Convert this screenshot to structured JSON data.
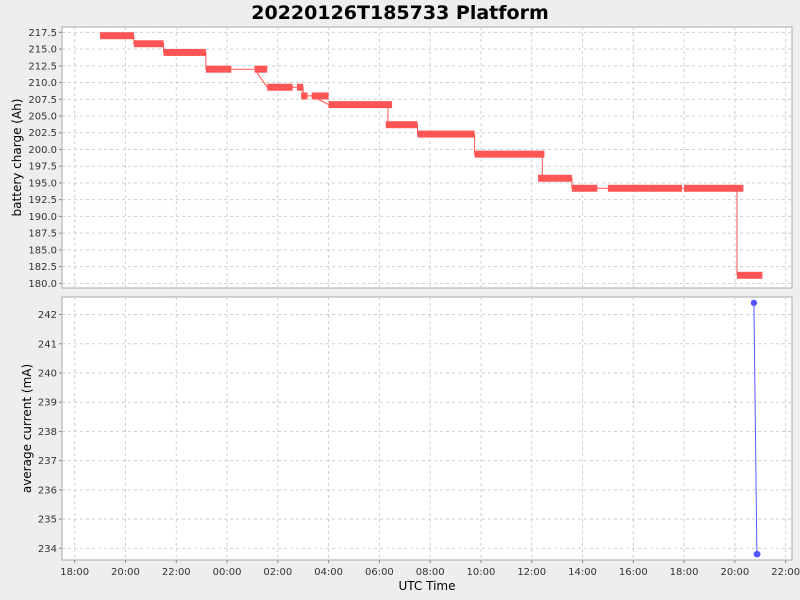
{
  "title": "20220126T185733 Platform",
  "colors": {
    "battery": "#ff5555",
    "current": "#5555ff",
    "plot_bg": "#ffffff",
    "frame": "#aaaaaa"
  },
  "chart_data": [
    {
      "type": "line",
      "title": "20220126T185733 Platform",
      "ylabel": "battery charge (Ah)",
      "xlabel": "UTC Time",
      "ylim": [
        179.3,
        218.3
      ],
      "yticks": [
        "180.0",
        "182.5",
        "185.0",
        "187.5",
        "190.0",
        "192.5",
        "195.0",
        "197.5",
        "200.0",
        "202.5",
        "205.0",
        "207.5",
        "210.0",
        "212.5",
        "215.0",
        "217.5"
      ],
      "grid": true,
      "series": [
        {
          "segments": [
            {
              "x_start": "2022-01-26 19:00",
              "x_end": "2022-01-26 20:20",
              "y": 217.0
            },
            {
              "x_start": "2022-01-26 20:20",
              "x_end": "2022-01-26 21:30",
              "y": 215.8
            },
            {
              "x_start": "2022-01-26 21:30",
              "x_end": "2022-01-26 23:10",
              "y": 214.5
            },
            {
              "x_start": "2022-01-26 23:10",
              "x_end": "2022-01-27 00:10",
              "y": 212.0
            },
            {
              "x_start": "2022-01-27 01:05",
              "x_end": "2022-01-27 01:35",
              "y": 212.0
            },
            {
              "x_start": "2022-01-27 01:35",
              "x_end": "2022-01-27 02:35",
              "y": 209.3
            },
            {
              "x_start": "2022-01-27 02:45",
              "x_end": "2022-01-27 03:00",
              "y": 209.3
            },
            {
              "x_start": "2022-01-27 02:55",
              "x_end": "2022-01-27 03:10",
              "y": 208.0
            },
            {
              "x_start": "2022-01-27 03:20",
              "x_end": "2022-01-27 04:00",
              "y": 208.0
            },
            {
              "x_start": "2022-01-27 04:00",
              "x_end": "2022-01-27 06:30",
              "y": 206.7
            },
            {
              "x_start": "2022-01-27 06:15",
              "x_end": "2022-01-27 07:30",
              "y": 203.7
            },
            {
              "x_start": "2022-01-27 07:30",
              "x_end": "2022-01-27 09:45",
              "y": 202.3
            },
            {
              "x_start": "2022-01-27 09:45",
              "x_end": "2022-01-27 12:30",
              "y": 199.3
            },
            {
              "x_start": "2022-01-27 12:15",
              "x_end": "2022-01-27 13:35",
              "y": 195.7
            },
            {
              "x_start": "2022-01-27 13:35",
              "x_end": "2022-01-27 14:35",
              "y": 194.2
            },
            {
              "x_start": "2022-01-27 15:00",
              "x_end": "2022-01-27 15:25",
              "y": 194.2
            },
            {
              "x_start": "2022-01-27 15:25",
              "x_end": "2022-01-27 16:35",
              "y": 194.2
            },
            {
              "x_start": "2022-01-27 16:35",
              "x_end": "2022-01-27 17:55",
              "y": 194.2
            },
            {
              "x_start": "2022-01-27 18:00",
              "x_end": "2022-01-27 20:20",
              "y": 194.2
            },
            {
              "x_start": "2022-01-27 20:05",
              "x_end": "2022-01-27 21:05",
              "y": 181.2
            }
          ],
          "path": [
            [
              "2022-01-26 20:20",
              217.0
            ],
            [
              "2022-01-26 20:20",
              215.8
            ],
            [
              "2022-01-26 21:30",
              215.8
            ],
            [
              "2022-01-26 21:30",
              214.5
            ],
            [
              "2022-01-26 23:10",
              214.5
            ],
            [
              "2022-01-26 23:10",
              212.0
            ],
            [
              "2022-01-27 01:05",
              212.0
            ],
            [
              "2022-01-27 01:35",
              209.3
            ],
            [
              "2022-01-27 02:35",
              209.3
            ],
            [
              "2022-01-27 02:45",
              209.3
            ],
            [
              "2022-01-27 03:00",
              209.3
            ],
            [
              "2022-01-27 03:00",
              208.0
            ],
            [
              "2022-01-27 03:20",
              208.0
            ],
            [
              "2022-01-27 04:00",
              206.7
            ],
            [
              "2022-01-27 06:20",
              206.7
            ],
            [
              "2022-01-27 06:20",
              203.7
            ],
            [
              "2022-01-27 07:30",
              203.7
            ],
            [
              "2022-01-27 07:30",
              202.3
            ],
            [
              "2022-01-27 09:45",
              202.3
            ],
            [
              "2022-01-27 09:45",
              199.3
            ],
            [
              "2022-01-27 12:25",
              199.3
            ],
            [
              "2022-01-27 12:25",
              195.7
            ],
            [
              "2022-01-27 13:35",
              195.7
            ],
            [
              "2022-01-27 13:35",
              194.2
            ],
            [
              "2022-01-27 20:05",
              194.2
            ],
            [
              "2022-01-27 20:05",
              181.2
            ]
          ]
        }
      ]
    },
    {
      "type": "line",
      "ylabel": "average current (mA)",
      "xlabel": "UTC Time",
      "ylim": [
        233.6,
        242.6
      ],
      "yticks": [
        "234",
        "235",
        "236",
        "237",
        "238",
        "239",
        "240",
        "241",
        "242"
      ],
      "grid": true,
      "series": [
        {
          "x": [
            "2022-01-27 20:45",
            "2022-01-27 20:52",
            "2022-01-27 20:53"
          ],
          "y": [
            242.4,
            233.8,
            233.8
          ]
        }
      ]
    }
  ],
  "x_axis": {
    "label": "UTC Time",
    "start": "2022-01-26 17:30",
    "end": "2022-01-27 22:15",
    "ticks": [
      {
        "t": "2022-01-26 18:00",
        "label": "18:00"
      },
      {
        "t": "2022-01-26 20:00",
        "label": "20:00"
      },
      {
        "t": "2022-01-26 22:00",
        "label": "22:00"
      },
      {
        "t": "2022-01-27 00:00",
        "label": "00:00"
      },
      {
        "t": "2022-01-27 02:00",
        "label": "02:00"
      },
      {
        "t": "2022-01-27 04:00",
        "label": "04:00"
      },
      {
        "t": "2022-01-27 06:00",
        "label": "06:00"
      },
      {
        "t": "2022-01-27 08:00",
        "label": "08:00"
      },
      {
        "t": "2022-01-27 10:00",
        "label": "10:00"
      },
      {
        "t": "2022-01-27 12:00",
        "label": "12:00"
      },
      {
        "t": "2022-01-27 14:00",
        "label": "14:00"
      },
      {
        "t": "2022-01-27 16:00",
        "label": "16:00"
      },
      {
        "t": "2022-01-27 18:00",
        "label": "18:00"
      },
      {
        "t": "2022-01-27 20:00",
        "label": "20:00"
      },
      {
        "t": "2022-01-27 22:00",
        "label": "22:00"
      }
    ]
  }
}
